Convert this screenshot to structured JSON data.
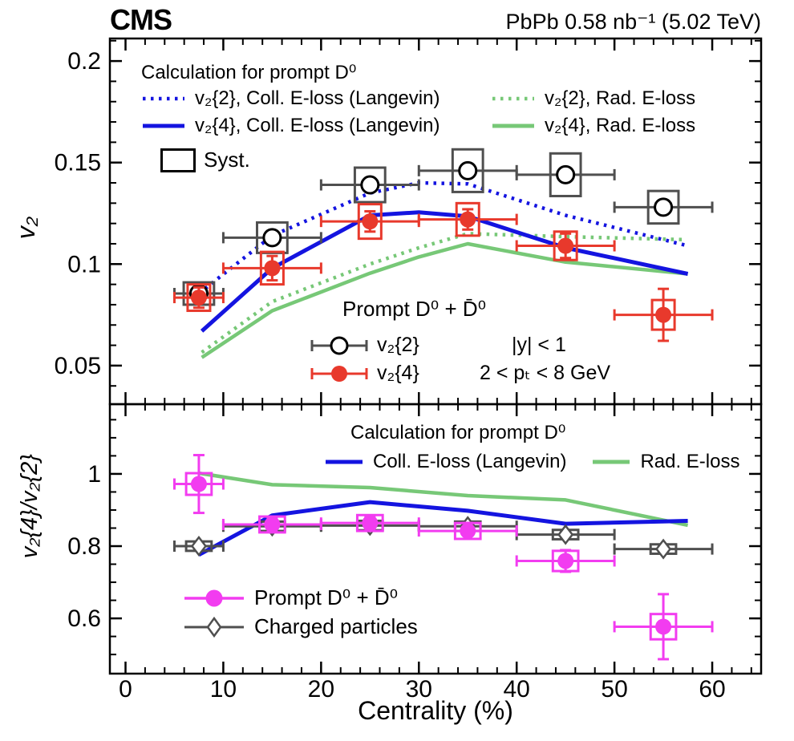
{
  "header": {
    "experiment": "CMS",
    "info": "PbPb 0.58 nb⁻¹ (5.02 TeV)"
  },
  "colors": {
    "blue": "#1414e0",
    "green": "#77c877",
    "red": "#e8392c",
    "magenta": "#f23cf0",
    "gray": "#4f4f4f",
    "black": "#000000"
  },
  "legends": {
    "top": {
      "title": "Calculation for prompt D⁰",
      "coll2": "v₂{2}, Coll. E-loss (Langevin)",
      "coll4": "v₂{4}, Coll. E-loss (Langevin)",
      "rad2": "v₂{2}, Rad. E-loss",
      "rad4": "v₂{4}, Rad. E-loss"
    },
    "syst": "Syst.",
    "mid": {
      "title": "Prompt D⁰ + D̄⁰",
      "v22": "v₂{2}",
      "v24": "v₂{4}",
      "rapidity": "|y| < 1",
      "pt": "2 < pₜ < 8 GeV"
    },
    "bottom": {
      "title": "Calculation for prompt D⁰",
      "coll": "Coll. E-loss (Langevin)",
      "rad": "Rad. E-loss"
    },
    "bottom_data": {
      "d0": "Prompt D⁰ + D̄⁰",
      "charged": "Charged particles"
    }
  },
  "chart_data": {
    "type": "scatter",
    "title": "CMS prompt D0 azimuthal anisotropy, PbPb 5.02 TeV",
    "x_axis": {
      "label": "Centrality (%)",
      "range": [
        -1.6,
        65.0
      ],
      "major_ticks": [
        0,
        10,
        20,
        30,
        40,
        50,
        60
      ],
      "minor_step": 2
    },
    "panels": [
      {
        "id": "v2",
        "y_axis": {
          "label": "v₂",
          "range": [
            0.031,
            0.2111
          ],
          "major_ticks": [
            {
              "v": 0.05,
              "t": "0.05"
            },
            {
              "v": 0.1,
              "t": "0.1"
            },
            {
              "v": 0.15,
              "t": "0.15"
            },
            {
              "v": 0.2,
              "t": "0.2"
            }
          ],
          "minor_step": 0.01
        },
        "curves": [
          {
            "id": "v24-rad",
            "label": "v₂{4}, Rad. E-loss",
            "style": "solid",
            "color_key": "green",
            "points": [
              [
                7.8,
                0.054
              ],
              [
                15,
                0.077
              ],
              [
                25,
                0.0955
              ],
              [
                30,
                0.1035
              ],
              [
                35,
                0.11
              ],
              [
                45,
                0.101
              ],
              [
                57.5,
                0.0952
              ]
            ]
          },
          {
            "id": "v22-rad",
            "label": "v₂{2}, Rad. E-loss",
            "style": "dotted",
            "color_key": "green",
            "points": [
              [
                7.8,
                0.0565
              ],
              [
                15,
                0.0815
              ],
              [
                25,
                0.1
              ],
              [
                30,
                0.108
              ],
              [
                35,
                0.115
              ],
              [
                45,
                0.1135
              ],
              [
                57.3,
                0.112
              ]
            ]
          },
          {
            "id": "v24-coll",
            "label": "v₂{4}, Coll. E-loss (Langevin)",
            "style": "solid",
            "color_key": "blue",
            "points": [
              [
                7.8,
                0.067
              ],
              [
                15,
                0.098
              ],
              [
                25,
                0.124
              ],
              [
                30,
                0.1255
              ],
              [
                35,
                0.1235
              ],
              [
                45,
                0.108
              ],
              [
                57.5,
                0.0952
              ]
            ]
          },
          {
            "id": "v22-coll",
            "label": "v₂{2}, Coll. E-loss (Langevin)",
            "style": "dotted",
            "color_key": "blue",
            "points": [
              [
                7.5,
                0.0855
              ],
              [
                15,
                0.114
              ],
              [
                25,
                0.135
              ],
              [
                30,
                0.14
              ],
              [
                35,
                0.1395
              ],
              [
                45,
                0.124
              ],
              [
                57.5,
                0.109
              ]
            ]
          }
        ],
        "series": [
          {
            "id": "v2_2",
            "label": "v₂{2}",
            "marker": "open-circle",
            "color_key": "black",
            "err_color_key": "gray",
            "x": [
              7.5,
              15,
              25,
              35,
              45,
              55
            ],
            "y": [
              0.0855,
              0.113,
              0.139,
              0.146,
              0.144,
              0.128
            ],
            "xerr": [
              2.5,
              5,
              5,
              5,
              5,
              5
            ],
            "yerr": [
              0.0025,
              0.0025,
              0.0025,
              0.0025,
              0.0025,
              0.0025
            ],
            "syst": [
              0.0055,
              0.0075,
              0.0085,
              0.0105,
              0.0105,
              0.008
            ],
            "box_halfwidth_pct": 1.55
          },
          {
            "id": "v2_4",
            "label": "v₂{4}",
            "marker": "filled-circle",
            "color_key": "red",
            "err_color_key": "red",
            "x": [
              7.5,
              15,
              25,
              35,
              45,
              55
            ],
            "y": [
              0.0835,
              0.098,
              0.121,
              0.122,
              0.109,
              0.075
            ],
            "xerr": [
              2.5,
              5,
              5,
              5,
              5,
              5
            ],
            "yerr": [
              0.005,
              0.006,
              0.005,
              0.005,
              0.006,
              0.0128
            ],
            "syst": [
              0.0065,
              0.008,
              0.0085,
              0.008,
              0.007,
              0.0073
            ],
            "box_halfwidth_pct": 1.15
          }
        ]
      },
      {
        "id": "ratio",
        "y_axis": {
          "label": "v₂{4}/v₂{2}",
          "range": [
            0.447,
            1.193
          ],
          "major_ticks": [
            {
              "v": 0.6,
              "t": "0.6"
            },
            {
              "v": 0.8,
              "t": "0.8"
            },
            {
              "v": 1.0,
              "t": "1"
            }
          ],
          "minor_step": 0.05
        },
        "curves": [
          {
            "id": "ratio-rad",
            "label": "Rad. E-loss",
            "style": "solid",
            "color_key": "green",
            "points": [
              [
                7.5,
                1.002
              ],
              [
                15,
                0.97
              ],
              [
                25,
                0.962
              ],
              [
                35,
                0.94
              ],
              [
                45,
                0.928
              ],
              [
                57.5,
                0.858
              ]
            ]
          },
          {
            "id": "ratio-coll",
            "label": "Coll. E-loss (Langevin)",
            "style": "solid",
            "color_key": "blue",
            "points": [
              [
                7.5,
                0.776
              ],
              [
                15,
                0.885
              ],
              [
                25,
                0.922
              ],
              [
                35,
                0.898
              ],
              [
                45,
                0.862
              ],
              [
                57.5,
                0.87
              ]
            ]
          }
        ],
        "series": [
          {
            "id": "charged",
            "label": "Charged particles",
            "marker": "open-diamond",
            "color_key": "gray",
            "err_color_key": "gray",
            "x": [
              7.5,
              15,
              25,
              35,
              45,
              55
            ],
            "y": [
              0.8,
              0.855,
              0.857,
              0.855,
              0.832,
              0.792
            ],
            "xerr": [
              2.5,
              5,
              5,
              5,
              5,
              5
            ],
            "yerr": [
              0.008,
              0.008,
              0.008,
              0.008,
              0.008,
              0.008
            ],
            "syst": [
              0.013,
              0.013,
              0.013,
              0.013,
              0.013,
              0.013
            ],
            "box_halfwidth_pct": 1.3
          },
          {
            "id": "d0",
            "label": "Prompt D⁰ + D̄⁰",
            "marker": "filled-circle",
            "color_key": "magenta",
            "err_color_key": "magenta",
            "x": [
              7.5,
              15,
              25,
              35,
              45,
              55
            ],
            "y": [
              0.972,
              0.86,
              0.864,
              0.842,
              0.759,
              0.577
            ],
            "xerr": [
              2.5,
              5,
              5,
              5,
              5,
              5
            ],
            "yerr": [
              0.08,
              0.02,
              0.018,
              0.022,
              0.03,
              0.09
            ],
            "syst": [
              0.03,
              0.022,
              0.022,
              0.022,
              0.028,
              0.035
            ],
            "box_halfwidth_pct": 1.3
          }
        ]
      }
    ]
  }
}
